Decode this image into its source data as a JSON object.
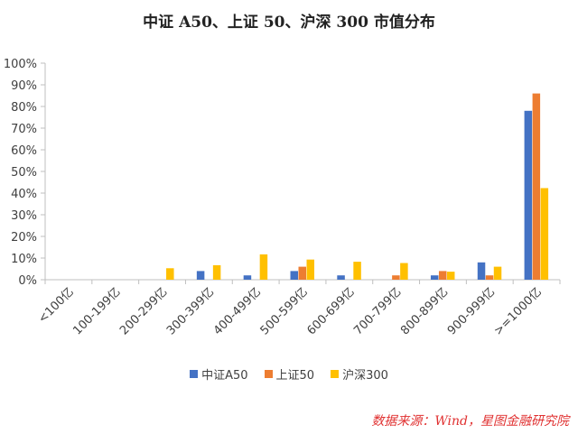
{
  "chart_data": {
    "type": "bar",
    "title": "中证 A50、上证 50、沪深 300 市值分布",
    "categories": [
      "<100亿",
      "100-199亿",
      "200-299亿",
      "300-399亿",
      "400-499亿",
      "500-599亿",
      "600-699亿",
      "700-799亿",
      "800-899亿",
      "900-999亿",
      ">=1000亿"
    ],
    "series": [
      {
        "name": "中证A50",
        "color": "#4472C4",
        "values": [
          0,
          0,
          0,
          4,
          2,
          4,
          2,
          0,
          2,
          8,
          78
        ]
      },
      {
        "name": "上证50",
        "color": "#ED7D31",
        "values": [
          0,
          0,
          0,
          0,
          0,
          6,
          0,
          2,
          4,
          2,
          86
        ]
      },
      {
        "name": "沪深300",
        "color": "#FFC000",
        "values": [
          0,
          0,
          5.3,
          6.7,
          11.7,
          9.3,
          8.3,
          7.7,
          3.7,
          6,
          42.3
        ]
      }
    ],
    "y_ticks": [
      "0%",
      "10%",
      "20%",
      "30%",
      "40%",
      "50%",
      "60%",
      "70%",
      "80%",
      "90%",
      "100%"
    ],
    "ylim": [
      0,
      100
    ],
    "xlabel": "",
    "ylabel": "",
    "grid": false,
    "legend_position": "bottom"
  },
  "source": "数据来源：Wind，星图金融研究院"
}
